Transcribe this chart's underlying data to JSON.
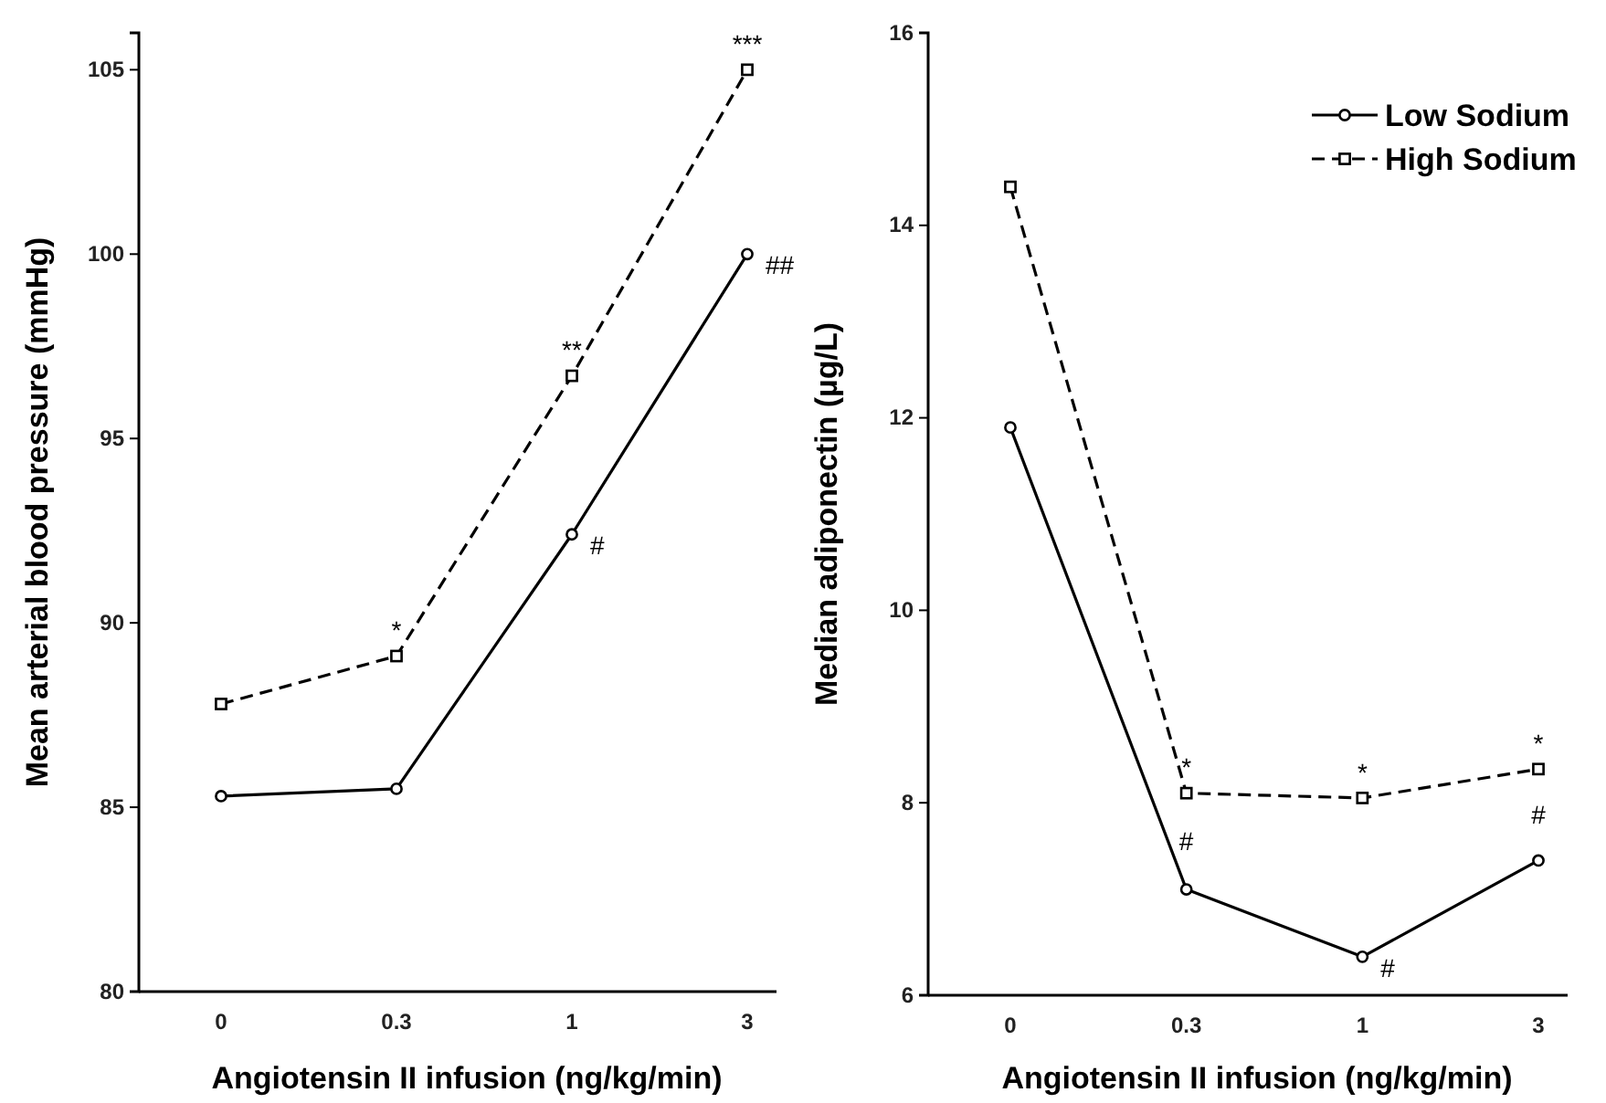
{
  "chart_data": [
    {
      "type": "line",
      "categories": [
        "0",
        "0.3",
        "1",
        "3"
      ],
      "xlabel": "Angiotensin II infusion (ng/kg/min)",
      "ylabel": "Mean arterial blood pressure (mmHg)",
      "ylim": [
        80,
        106
      ],
      "yticks": [
        80,
        85,
        90,
        95,
        100,
        105
      ],
      "grid": false,
      "legend": false,
      "series": [
        {
          "color": "#000000",
          "marker": "circle",
          "line_style": "solid",
          "values": [
            85.3,
            85.5,
            92.4,
            100.0
          ]
        },
        {
          "color": "#000000",
          "marker": "square",
          "line_style": "dashed",
          "values": [
            87.8,
            89.1,
            96.7,
            105.0
          ]
        }
      ],
      "annotations": [
        {
          "text": "*",
          "x": "0.3",
          "y": 89.1
        },
        {
          "text": "**",
          "x": "1",
          "y": 96.7
        },
        {
          "text": "***",
          "x": "3",
          "y": 105.0
        },
        {
          "text": "#",
          "x": "1",
          "y": 92.4
        },
        {
          "text": "##",
          "x": "3",
          "y": 100.0
        }
      ]
    },
    {
      "type": "line",
      "categories": [
        "0",
        "0.3",
        "1",
        "3"
      ],
      "xlabel": "Angiotensin II infusion (ng/kg/min)",
      "ylabel": "Median adiponectin (µg/L)",
      "ylim": [
        6,
        16
      ],
      "yticks": [
        6,
        8,
        10,
        12,
        14,
        16
      ],
      "grid": false,
      "legend": "top right",
      "series": [
        {
          "name": "Low Sodium",
          "color": "#000000",
          "marker": "circle",
          "line_style": "solid",
          "values": [
            11.9,
            7.1,
            6.4,
            7.4
          ]
        },
        {
          "name": "High Sodium",
          "color": "#000000",
          "marker": "square",
          "line_style": "dashed",
          "values": [
            14.4,
            8.1,
            8.05,
            8.35
          ]
        }
      ],
      "annotations": [
        {
          "text": "*",
          "x": "0.3",
          "y": 8.1
        },
        {
          "text": "*",
          "x": "1",
          "y": 8.05
        },
        {
          "text": "*",
          "x": "3",
          "y": 8.35
        },
        {
          "text": "#",
          "x": "0.3",
          "y": 7.1
        },
        {
          "text": "#",
          "x": "1",
          "y": 6.4
        },
        {
          "text": "#",
          "x": "3",
          "y": 7.4
        }
      ]
    }
  ]
}
